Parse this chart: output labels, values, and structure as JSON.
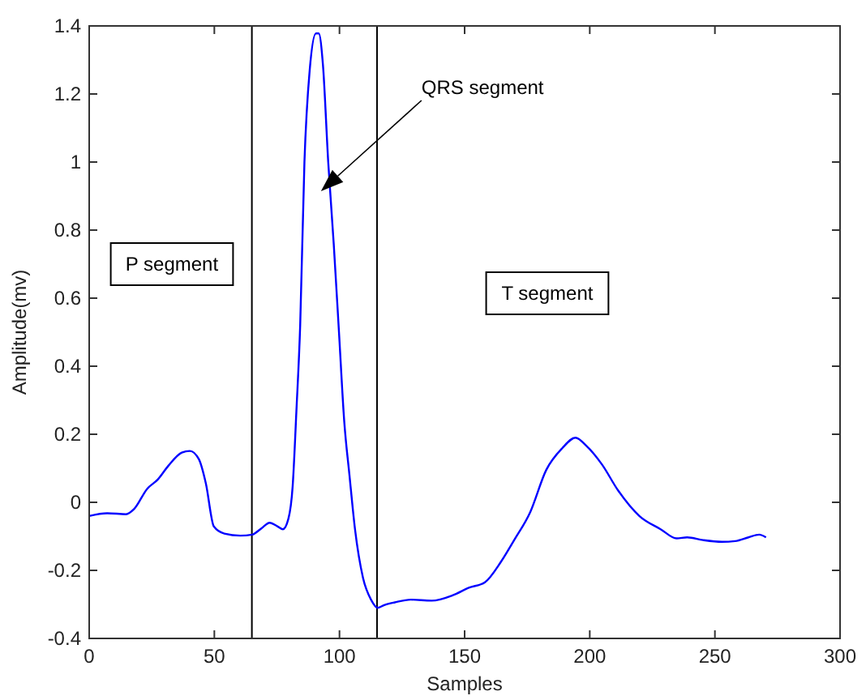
{
  "chart_data": {
    "type": "line",
    "xlabel": "Samples",
    "ylabel": "Amplitude(mv)",
    "x": [
      0,
      7.2,
      14.7,
      17.9,
      23.2,
      27.4,
      31.7,
      37,
      40.2,
      43.8,
      46.6,
      49.8,
      54,
      60.4,
      65.1,
      68.9,
      72.1,
      75.3,
      77.4,
      79.6,
      81.3,
      82.8,
      84.3,
      86,
      88.1,
      90.6,
      91.7,
      93.4,
      95.5,
      97.7,
      99.8,
      101.9,
      104,
      106.2,
      109.4,
      112.6,
      115.3,
      117.9,
      122.1,
      128.5,
      136.8,
      145.3,
      151.7,
      158.1,
      164.5,
      169.8,
      176.2,
      182.6,
      189,
      194.3,
      198.5,
      204.9,
      211.3,
      219.8,
      228.3,
      234.7,
      238.9,
      245.3,
      252.8,
      258.1,
      263.4,
      267.7,
      270.4
    ],
    "series": [
      {
        "color": "#0000ff",
        "values": [
          -0.04,
          -0.032,
          -0.035,
          -0.02,
          0.04,
          0.067,
          0.108,
          0.146,
          0.151,
          0.127,
          0.056,
          -0.071,
          -0.092,
          -0.098,
          -0.095,
          -0.076,
          -0.06,
          -0.071,
          -0.079,
          -0.048,
          0.048,
          0.27,
          0.52,
          1.0,
          1.27,
          1.378,
          1.378,
          1.285,
          1.0,
          0.76,
          0.5,
          0.238,
          0.079,
          -0.079,
          -0.222,
          -0.286,
          -0.31,
          -0.302,
          -0.294,
          -0.286,
          -0.289,
          -0.273,
          -0.251,
          -0.235,
          -0.175,
          -0.111,
          -0.029,
          0.095,
          0.159,
          0.19,
          0.167,
          0.111,
          0.035,
          -0.04,
          -0.079,
          -0.106,
          -0.103,
          -0.111,
          -0.116,
          -0.114,
          -0.103,
          -0.095,
          -0.103
        ]
      }
    ],
    "xlim": [
      0,
      300
    ],
    "xticks": [
      0,
      50,
      100,
      150,
      200,
      250,
      300
    ],
    "ylim": [
      -0.4,
      1.4
    ],
    "yticks": [
      -0.4,
      -0.2,
      0,
      0.2,
      0.4,
      0.6,
      0.8,
      1,
      1.2,
      1.4
    ],
    "ref_lines": [
      {
        "axis": "x",
        "value": 65,
        "color": "#000000"
      },
      {
        "axis": "x",
        "value": 115,
        "color": "#000000"
      }
    ],
    "annotations": [
      "P segment",
      "QRS segment",
      "T segment"
    ],
    "grid": false,
    "marker": "none",
    "line_style": "solid"
  }
}
